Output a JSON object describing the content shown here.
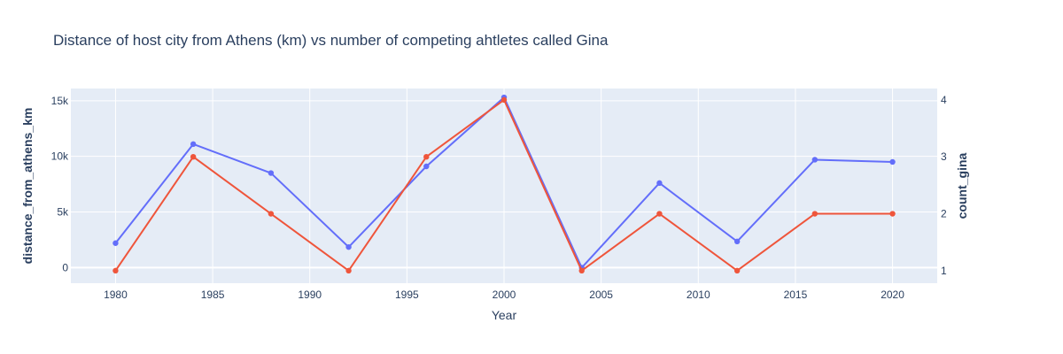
{
  "chart_data": {
    "type": "line",
    "title": "Distance of host city from Athens (km) vs number of competing ahtletes called Gina",
    "xlabel": "Year",
    "ylabel_left": "distance_from_athens_km",
    "ylabel_right": "count_gina",
    "x": [
      1980,
      1984,
      1988,
      1992,
      1996,
      2000,
      2004,
      2008,
      2012,
      2016,
      2020
    ],
    "xlim": [
      1977.7,
      2022.3
    ],
    "xticks": [
      1980,
      1985,
      1990,
      1995,
      2000,
      2005,
      2010,
      2015,
      2020
    ],
    "xtick_labels": [
      "1980",
      "1985",
      "1990",
      "1995",
      "2000",
      "2005",
      "2010",
      "2015",
      "2020"
    ],
    "y_left_lim": [
      -1400,
      16100
    ],
    "y_left_ticks": [
      0,
      5000,
      10000,
      15000
    ],
    "y_left_tick_labels": [
      "0",
      "5k",
      "10k",
      "15k"
    ],
    "y_right_lim": [
      0.78,
      4.2
    ],
    "y_right_ticks": [
      1,
      2,
      3,
      4
    ],
    "y_right_tick_labels": [
      "1",
      "2",
      "3",
      "4"
    ],
    "grid": true,
    "series": [
      {
        "axis": "left",
        "color": "#636efa",
        "values": [
          2200,
          11100,
          8500,
          1850,
          9100,
          15300,
          0,
          7600,
          2350,
          9700,
          9500
        ]
      },
      {
        "axis": "right",
        "color": "#ef553b",
        "values": [
          1,
          3,
          2,
          1,
          3,
          4,
          1,
          2,
          1,
          2,
          2
        ]
      }
    ]
  },
  "colors": {
    "plot_bg": "#e5ecf6",
    "grid": "#ffffff",
    "text": "#2a3f5f"
  }
}
